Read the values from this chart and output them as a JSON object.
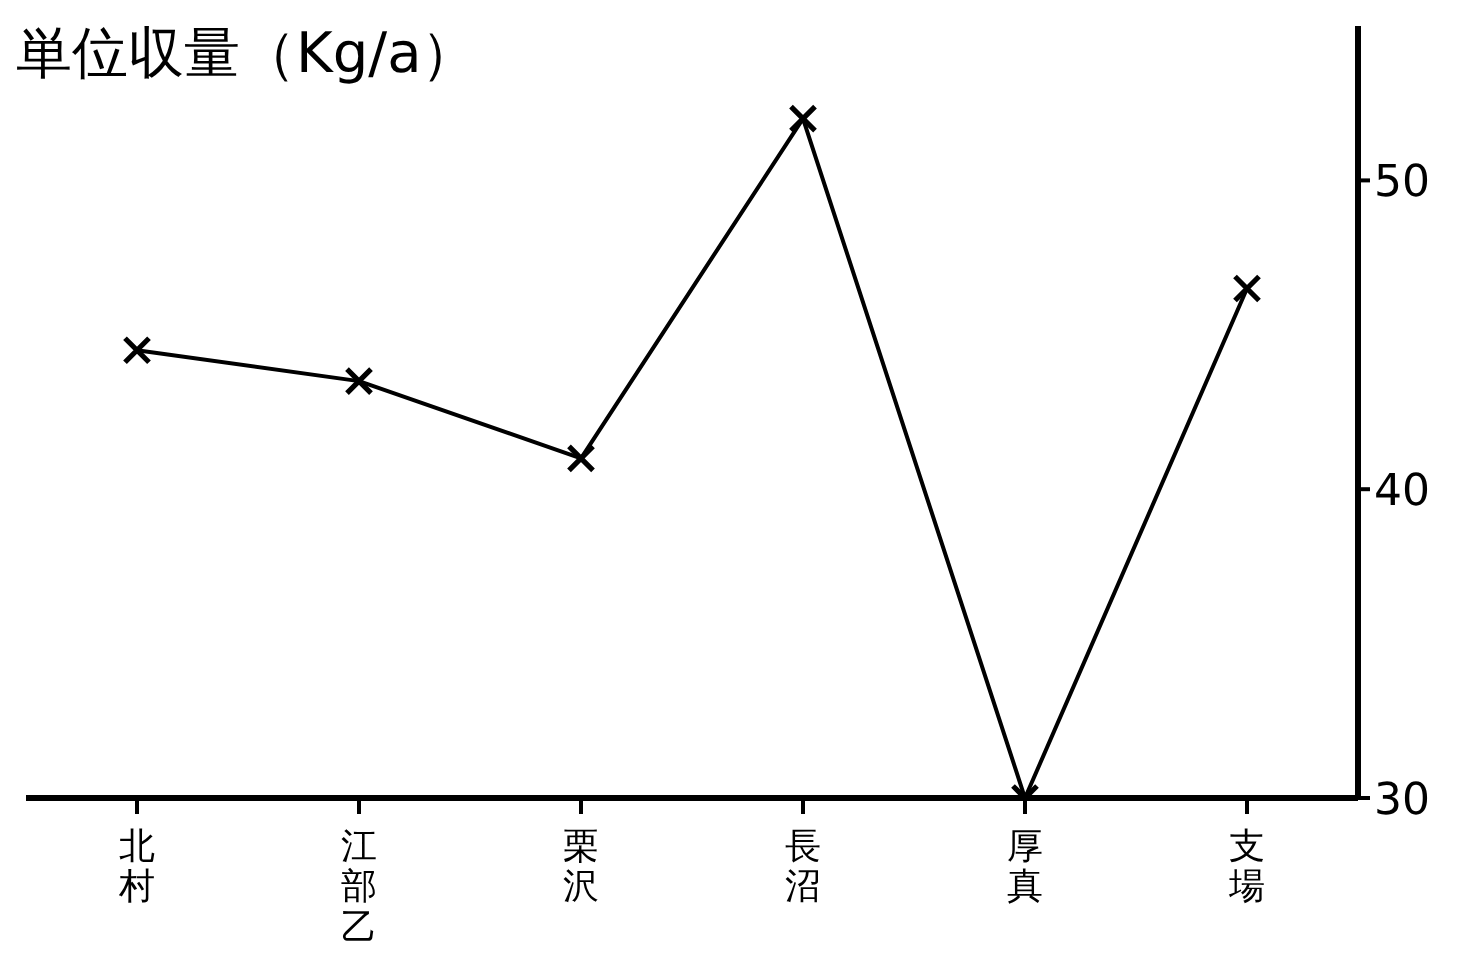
{
  "chart_data": {
    "type": "line",
    "title": "単位収量（Kg/a）",
    "categories": [
      "北村",
      "江部乙",
      "栗沢",
      "長沼",
      "厚真",
      "支場"
    ],
    "values": [
      44.5,
      43.5,
      41,
      52,
      30,
      46.5
    ],
    "color": "#000000",
    "ylim": [
      30,
      55
    ],
    "yticks": [
      30,
      40,
      50
    ],
    "marker": "cross",
    "line_style": "solid"
  }
}
